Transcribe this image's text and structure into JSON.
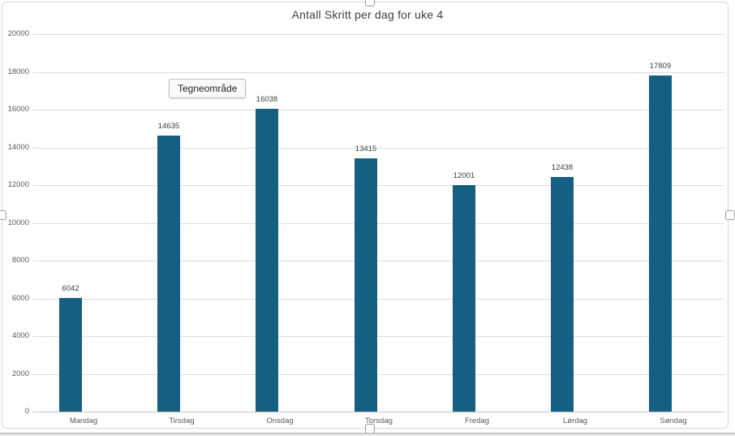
{
  "ui": {
    "tooltip_label": "Tegneområde"
  },
  "chart_data": {
    "type": "bar",
    "title": "Antall Skritt per dag for uke 4",
    "categories": [
      "Mandag",
      "Tirsdag",
      "Onsdag",
      "Torsdag",
      "Fredag",
      "Lørdag",
      "Søndag"
    ],
    "values": [
      6042,
      14635,
      16038,
      13415,
      12001,
      12438,
      17809
    ],
    "data_labels": [
      "6042",
      "14635",
      "16038",
      "13415",
      "12001",
      "12438",
      "17809"
    ],
    "y_ticks": [
      0,
      2000,
      4000,
      6000,
      8000,
      10000,
      12000,
      14000,
      16000,
      18000,
      20000
    ],
    "ylim": [
      0,
      20000
    ],
    "xlabel": "",
    "ylabel": "",
    "grid": true,
    "legend": "none",
    "bar_color": "#156082"
  }
}
